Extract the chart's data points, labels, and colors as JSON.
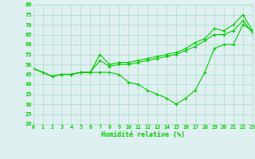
{
  "x": [
    0,
    1,
    2,
    3,
    4,
    5,
    6,
    7,
    8,
    9,
    10,
    11,
    12,
    13,
    14,
    15,
    16,
    17,
    18,
    19,
    20,
    21,
    22,
    23
  ],
  "line1": [
    48,
    46,
    44,
    45,
    45,
    46,
    46,
    55,
    50,
    51,
    51,
    52,
    53,
    54,
    55,
    56,
    58,
    61,
    63,
    68,
    67,
    70,
    75,
    67
  ],
  "line2": [
    48,
    46,
    44,
    45,
    45,
    46,
    46,
    52,
    49,
    50,
    50,
    51,
    52,
    53,
    54,
    55,
    57,
    59,
    62,
    65,
    65,
    67,
    72,
    66
  ],
  "line3": [
    48,
    46,
    44,
    45,
    45,
    46,
    46,
    46,
    46,
    45,
    41,
    40,
    37,
    35,
    33,
    30,
    33,
    37,
    46,
    58,
    60,
    60,
    70,
    67
  ],
  "xlabel": "Humidité relative (%)",
  "ylim": [
    20,
    80
  ],
  "xlim": [
    0,
    23
  ],
  "yticks": [
    20,
    25,
    30,
    35,
    40,
    45,
    50,
    55,
    60,
    65,
    70,
    75,
    80
  ],
  "xticks": [
    0,
    1,
    2,
    3,
    4,
    5,
    6,
    7,
    8,
    9,
    10,
    11,
    12,
    13,
    14,
    15,
    16,
    17,
    18,
    19,
    20,
    21,
    22,
    23
  ],
  "line_color": "#00cc00",
  "bg_color": "#dff0f0",
  "grid_color": "#aaddcc",
  "marker": "+"
}
